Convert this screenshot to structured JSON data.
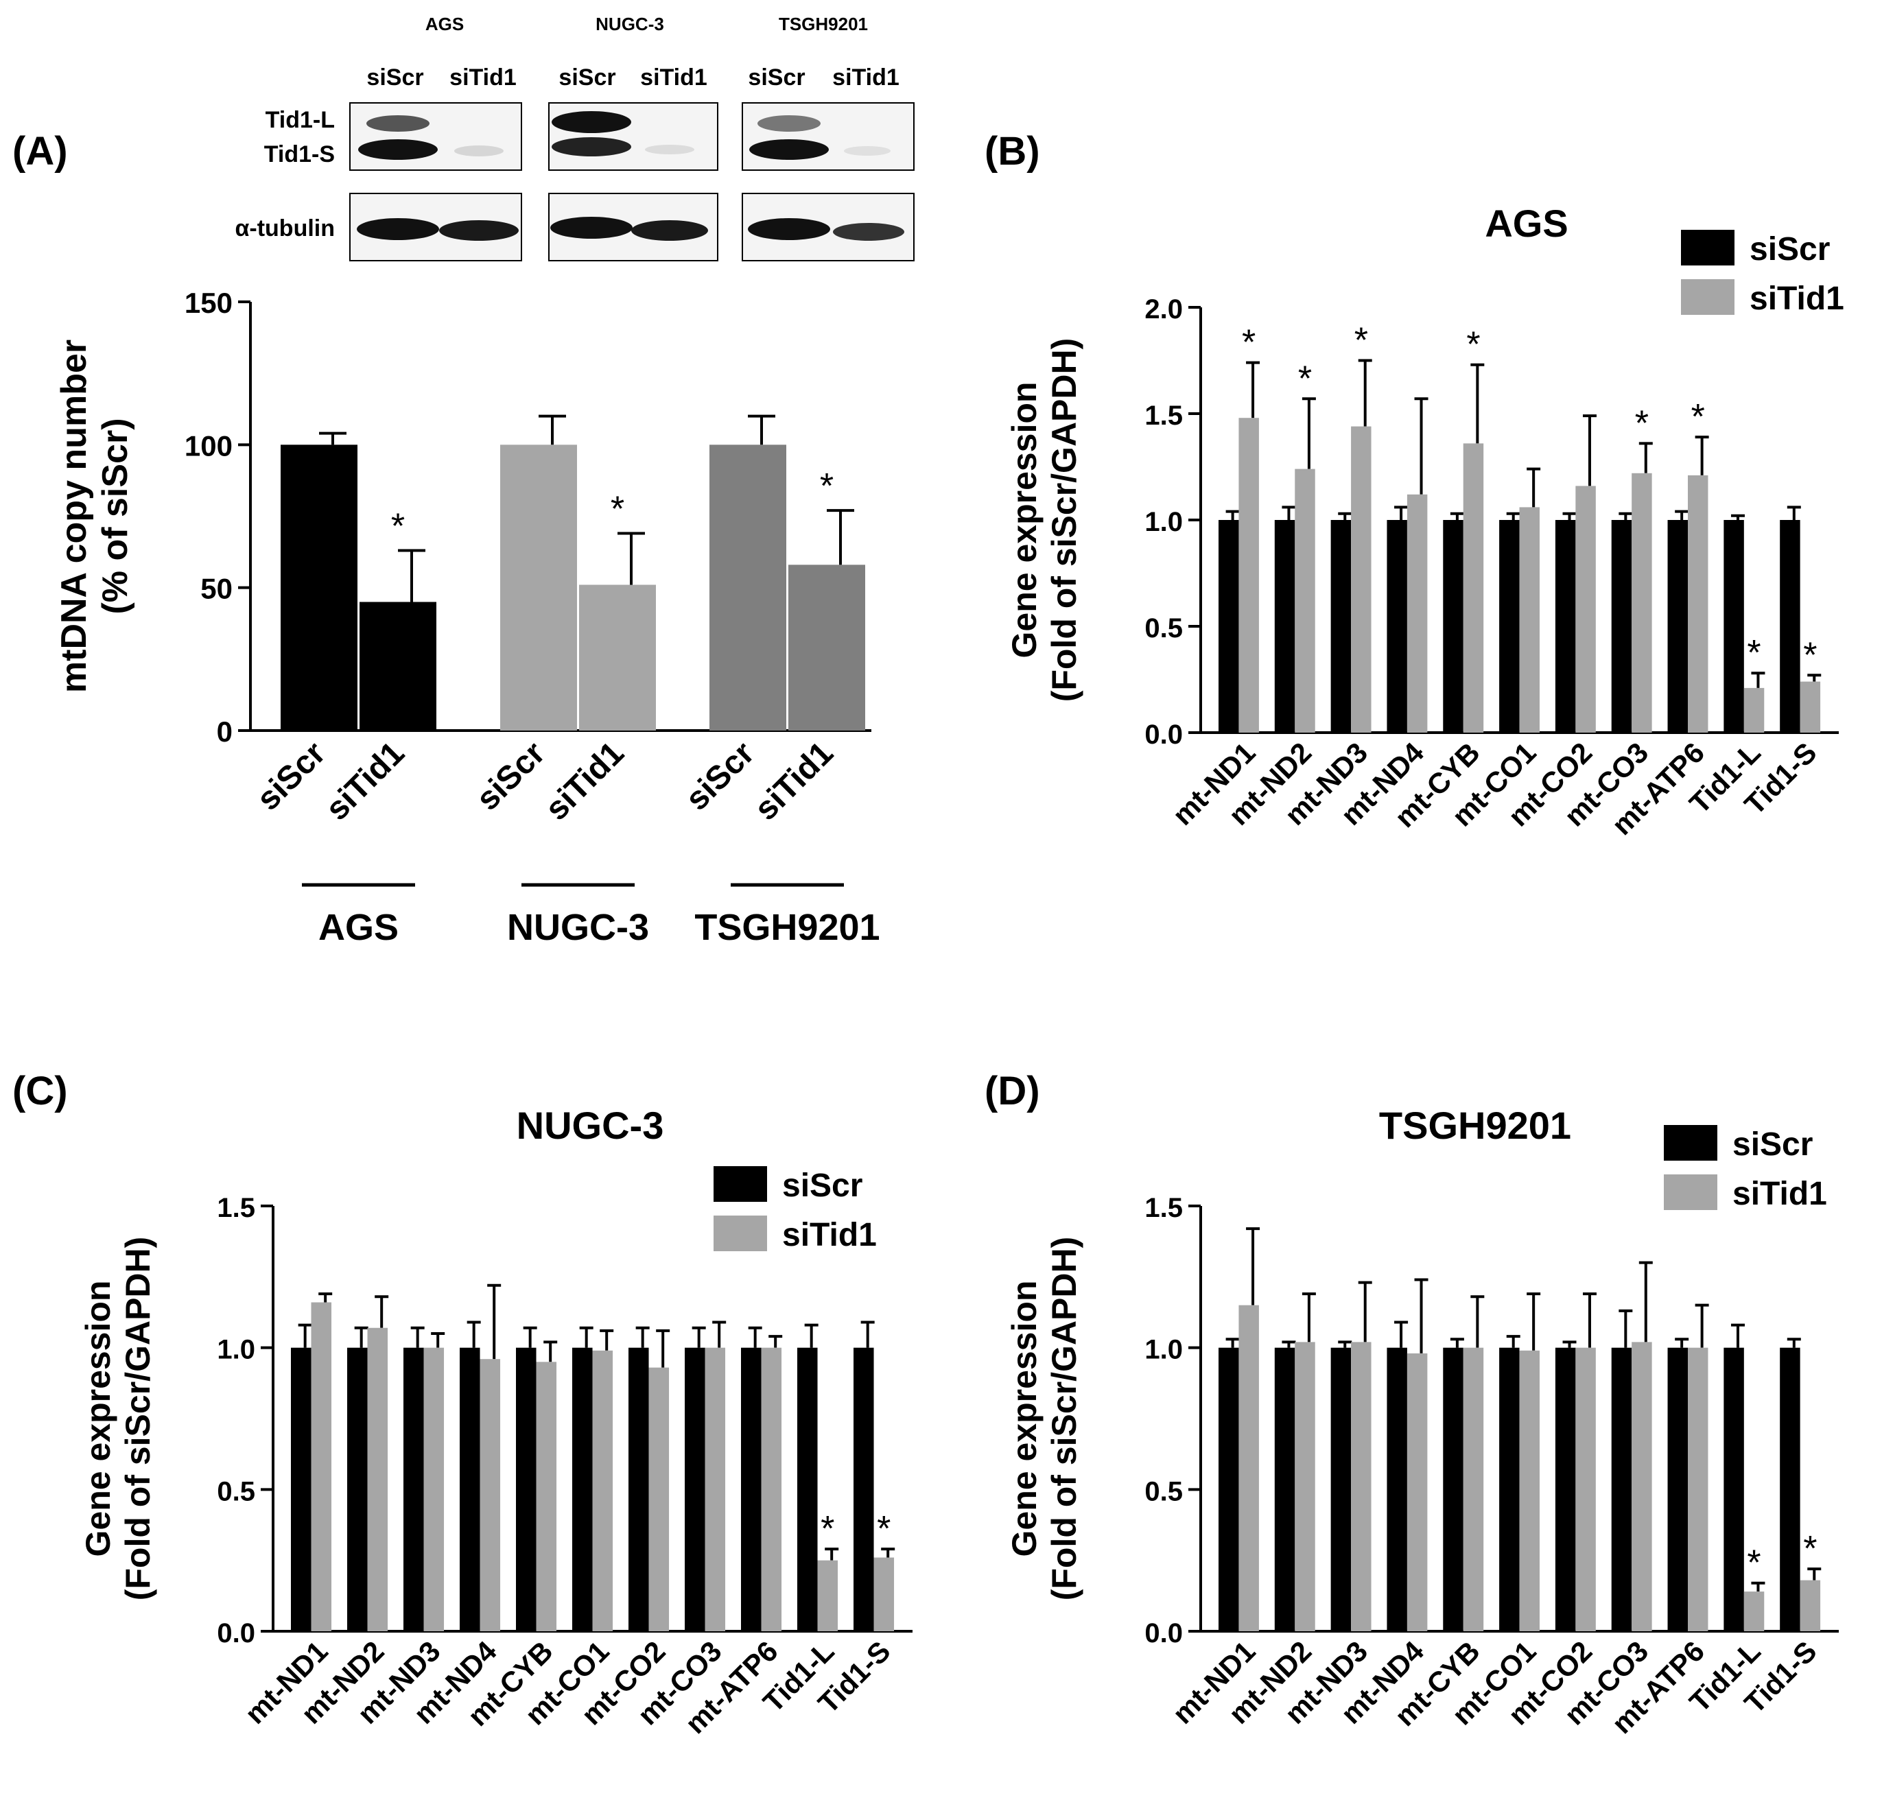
{
  "panel_labels": [
    "(A)",
    "(B)",
    "(C)",
    "(D)"
  ],
  "western_blot": {
    "cell_lines": [
      "AGS",
      "NUGC-3",
      "TSGH9201"
    ],
    "lane_labels": [
      "siScr",
      "siTid1"
    ],
    "band_labels": [
      "Tid1-L",
      "Tid1-S"
    ],
    "loading_label": "α-tubulin"
  },
  "colors": {
    "siScr": "#000000",
    "siTid1": "#a6a6a6",
    "nugc_siScr": "#a6a6a6",
    "nugc_siTid1": "#a6a6a6",
    "tsgh_bar": "#7f7f7f",
    "axis": "#000000"
  },
  "chart_data": [
    {
      "id": "A",
      "type": "bar",
      "title": "",
      "ylabel": "mtDNA copy number",
      "ylabel2": "(% of siScr)",
      "ylim": [
        0,
        150
      ],
      "yticks": [
        0,
        50,
        100,
        150
      ],
      "groups": [
        {
          "name": "AGS",
          "categories": [
            "siScr",
            "siTid1"
          ],
          "values": [
            100,
            45
          ],
          "errors": [
            4,
            18
          ],
          "significant": [
            false,
            true
          ]
        },
        {
          "name": "NUGC-3",
          "categories": [
            "siScr",
            "siTid1"
          ],
          "values": [
            100,
            51
          ],
          "errors": [
            10,
            18
          ],
          "significant": [
            false,
            true
          ]
        },
        {
          "name": "TSGH9201",
          "categories": [
            "siScr",
            "siTid1"
          ],
          "values": [
            100,
            58
          ],
          "errors": [
            10,
            19
          ],
          "significant": [
            false,
            true
          ]
        }
      ],
      "significance_mark": "*"
    },
    {
      "id": "B",
      "type": "bar",
      "title": "AGS",
      "ylabel": "Gene expression",
      "ylabel2": "(Fold of siScr/GAPDH)",
      "ylim": [
        0,
        2.0
      ],
      "yticks": [
        "0.0",
        "0.5",
        "1.0",
        "1.5",
        "2.0"
      ],
      "categories": [
        "mt-ND1",
        "mt-ND2",
        "mt-ND3",
        "mt-ND4",
        "mt-CYB",
        "mt-CO1",
        "mt-CO2",
        "mt-CO3",
        "mt-ATP6",
        "Tid1-L",
        "Tid1-S"
      ],
      "series": [
        {
          "name": "siScr",
          "values": [
            1.0,
            1.0,
            1.0,
            1.0,
            1.0,
            1.0,
            1.0,
            1.0,
            1.0,
            1.0,
            1.0
          ],
          "errors": [
            0.04,
            0.06,
            0.03,
            0.06,
            0.03,
            0.03,
            0.03,
            0.03,
            0.04,
            0.02,
            0.06
          ]
        },
        {
          "name": "siTid1",
          "values": [
            1.48,
            1.24,
            1.44,
            1.12,
            1.36,
            1.06,
            1.16,
            1.22,
            1.21,
            0.21,
            0.24
          ],
          "errors": [
            0.26,
            0.33,
            0.31,
            0.45,
            0.37,
            0.18,
            0.33,
            0.14,
            0.18,
            0.07,
            0.03
          ]
        }
      ],
      "significant": [
        true,
        true,
        true,
        false,
        true,
        false,
        false,
        true,
        true,
        true,
        true
      ],
      "significance_mark": "*",
      "legend": {
        "position": "top-right",
        "entries": [
          "siScr",
          "siTid1"
        ]
      }
    },
    {
      "id": "C",
      "type": "bar",
      "title": "NUGC-3",
      "ylabel": "Gene expression",
      "ylabel2": "(Fold of siScr/GAPDH)",
      "ylim": [
        0,
        1.5
      ],
      "yticks": [
        "0.0",
        "0.5",
        "1.0",
        "1.5"
      ],
      "categories": [
        "mt-ND1",
        "mt-ND2",
        "mt-ND3",
        "mt-ND4",
        "mt-CYB",
        "mt-CO1",
        "mt-CO2",
        "mt-CO3",
        "mt-ATP6",
        "Tid1-L",
        "Tid1-S"
      ],
      "series": [
        {
          "name": "siScr",
          "values": [
            1.0,
            1.0,
            1.0,
            1.0,
            1.0,
            1.0,
            1.0,
            1.0,
            1.0,
            1.0,
            1.0
          ],
          "errors": [
            0.08,
            0.07,
            0.07,
            0.09,
            0.07,
            0.07,
            0.07,
            0.07,
            0.07,
            0.08,
            0.09
          ]
        },
        {
          "name": "siTid1",
          "values": [
            1.16,
            1.07,
            1.0,
            0.96,
            0.95,
            0.99,
            0.93,
            1.0,
            1.0,
            0.25,
            0.26
          ],
          "errors": [
            0.03,
            0.11,
            0.05,
            0.26,
            0.07,
            0.07,
            0.13,
            0.09,
            0.04,
            0.04,
            0.03
          ]
        }
      ],
      "significant": [
        false,
        false,
        false,
        false,
        false,
        false,
        false,
        false,
        false,
        true,
        true
      ],
      "significance_mark": "*",
      "legend": {
        "position": "top-right",
        "entries": [
          "siScr",
          "siTid1"
        ]
      }
    },
    {
      "id": "D",
      "type": "bar",
      "title": "TSGH9201",
      "ylabel": "Gene expression",
      "ylabel2": "(Fold of siScr/GAPDH)",
      "ylim": [
        0,
        1.5
      ],
      "yticks": [
        "0.0",
        "0.5",
        "1.0",
        "1.5"
      ],
      "categories": [
        "mt-ND1",
        "mt-ND2",
        "mt-ND3",
        "mt-ND4",
        "mt-CYB",
        "mt-CO1",
        "mt-CO2",
        "mt-CO3",
        "mt-ATP6",
        "Tid1-L",
        "Tid1-S"
      ],
      "series": [
        {
          "name": "siScr",
          "values": [
            1.0,
            1.0,
            1.0,
            1.0,
            1.0,
            1.0,
            1.0,
            1.0,
            1.0,
            1.0,
            1.0
          ],
          "errors": [
            0.03,
            0.02,
            0.02,
            0.09,
            0.03,
            0.04,
            0.02,
            0.13,
            0.03,
            0.08,
            0.03
          ]
        },
        {
          "name": "siTid1",
          "values": [
            1.15,
            1.02,
            1.02,
            0.98,
            1.0,
            0.99,
            1.0,
            1.02,
            1.0,
            0.14,
            0.18
          ],
          "errors": [
            0.27,
            0.17,
            0.21,
            0.26,
            0.18,
            0.2,
            0.19,
            0.28,
            0.15,
            0.03,
            0.04
          ]
        }
      ],
      "significant": [
        false,
        false,
        false,
        false,
        false,
        false,
        false,
        false,
        false,
        true,
        true
      ],
      "significance_mark": "*",
      "legend": {
        "position": "top-right",
        "entries": [
          "siScr",
          "siTid1"
        ]
      }
    }
  ]
}
